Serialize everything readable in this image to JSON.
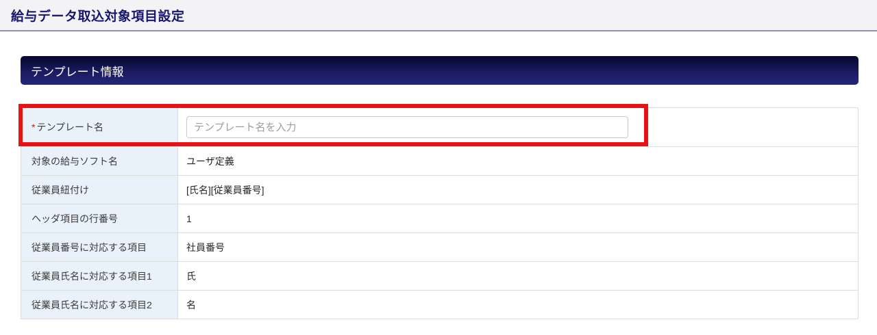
{
  "page": {
    "title": "給与データ取込対象項目設定"
  },
  "section": {
    "title": "テンプレート情報"
  },
  "form": {
    "template_name": {
      "required_marker": "*",
      "label": "テンプレート名",
      "placeholder": "テンプレート名を入力",
      "value": ""
    },
    "rows": [
      {
        "label": "対象の給与ソフト名",
        "value": "ユーザ定義"
      },
      {
        "label": "従業員紐付け",
        "value": "[氏名][従業員番号]"
      },
      {
        "label": "ヘッダ項目の行番号",
        "value": "1"
      },
      {
        "label": "従業員番号に対応する項目",
        "value": "社員番号"
      },
      {
        "label": "従業員氏名に対応する項目1",
        "value": "氏"
      },
      {
        "label": "従業員氏名に対応する項目2",
        "value": "名"
      }
    ]
  },
  "colors": {
    "title_text": "#17176b",
    "title_band_bg": "#f3f3f6",
    "divider": "#8c8cba",
    "header_bar_top": "#06062f",
    "header_bar_bottom": "#26267a",
    "label_cell_bg": "#e9f1fa",
    "table_border": "#dcdcdc",
    "highlight_red": "#e81212",
    "required_red": "#e01111"
  }
}
